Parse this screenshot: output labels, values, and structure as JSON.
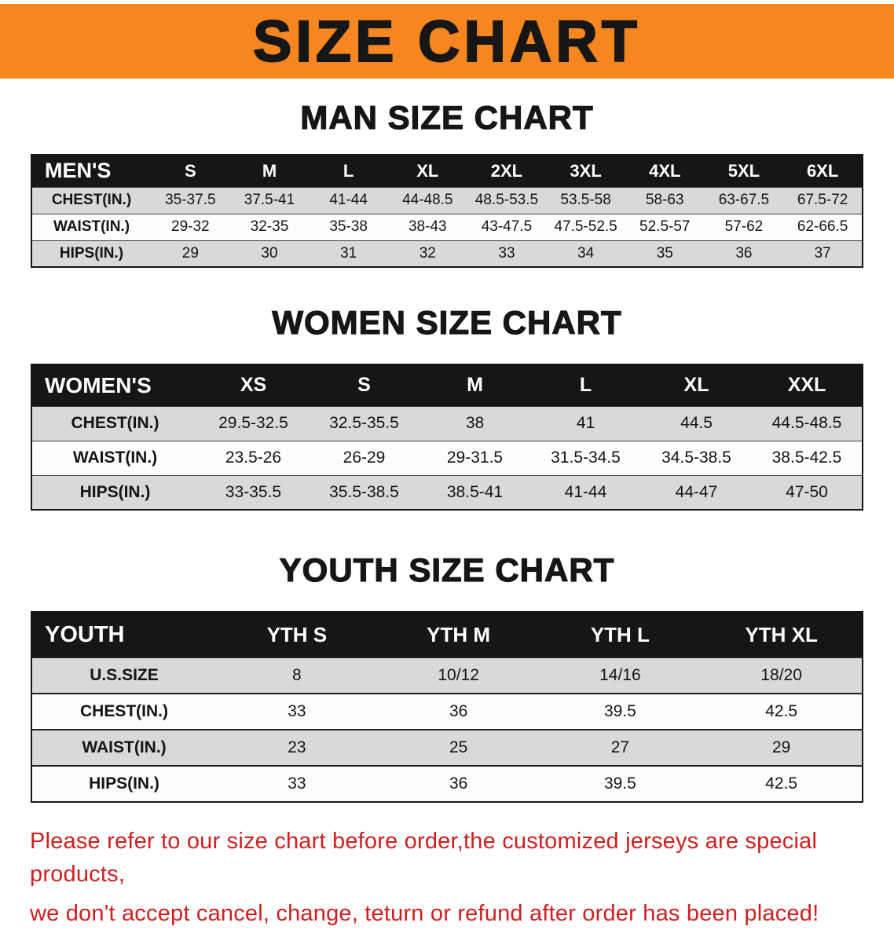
{
  "banner": {
    "title": "SIZE CHART",
    "bg_color": "#f6861f",
    "text_color": "#161616"
  },
  "sections": {
    "men": {
      "heading": "MAN SIZE CHART",
      "table": {
        "header": [
          "MEN'S",
          "S",
          "M",
          "L",
          "XL",
          "2XL",
          "3XL",
          "4XL",
          "5XL",
          "6XL"
        ],
        "rows": [
          [
            "CHEST(IN.)",
            "35-37.5",
            "37.5-41",
            "41-44",
            "44-48.5",
            "48.5-53.5",
            "53.5-58",
            "58-63",
            "63-67.5",
            "67.5-72"
          ],
          [
            "WAIST(IN.)",
            "29-32",
            "32-35",
            "35-38",
            "38-43",
            "43-47.5",
            "47.5-52.5",
            "52.5-57",
            "57-62",
            "62-66.5"
          ],
          [
            "HIPS(IN.)",
            "29",
            "30",
            "31",
            "32",
            "33",
            "34",
            "35",
            "36",
            "37"
          ]
        ]
      }
    },
    "women": {
      "heading": "WOMEN SIZE CHART",
      "table": {
        "header": [
          "WOMEN'S",
          "XS",
          "S",
          "M",
          "L",
          "XL",
          "XXL"
        ],
        "rows": [
          [
            "CHEST(IN.)",
            "29.5-32.5",
            "32.5-35.5",
            "38",
            "41",
            "44.5",
            "44.5-48.5"
          ],
          [
            "WAIST(IN.)",
            "23.5-26",
            "26-29",
            "29-31.5",
            "31.5-34.5",
            "34.5-38.5",
            "38.5-42.5"
          ],
          [
            "HIPS(IN.)",
            "33-35.5",
            "35.5-38.5",
            "38.5-41",
            "41-44",
            "44-47",
            "47-50"
          ]
        ]
      }
    },
    "youth": {
      "heading": "YOUTH SIZE CHART",
      "table": {
        "header": [
          "YOUTH",
          "YTH S",
          "YTH M",
          "YTH L",
          "YTH XL"
        ],
        "rows": [
          [
            "U.S.SIZE",
            "8",
            "10/12",
            "14/16",
            "18/20"
          ],
          [
            "CHEST(IN.)",
            "33",
            "36",
            "39.5",
            "42.5"
          ],
          [
            "WAIST(IN.)",
            "23",
            "25",
            "27",
            "29"
          ],
          [
            "HIPS(IN.)",
            "33",
            "36",
            "39.5",
            "42.5"
          ]
        ]
      }
    }
  },
  "disclaimer": {
    "line1": "Please refer to our size chart before order,the customized jerseys are special products,",
    "line2": "we don't accept cancel, change, teturn or refund after order has been placed!",
    "color": "#cf1f1f"
  }
}
